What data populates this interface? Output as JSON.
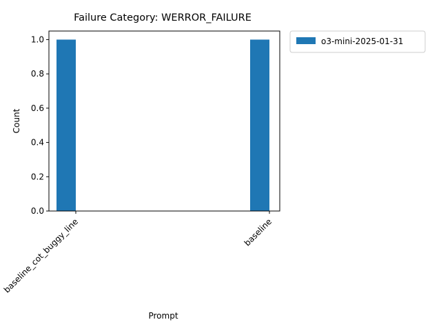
{
  "chart_data": {
    "type": "bar",
    "title": "Failure Category: WERROR_FAILURE",
    "xlabel": "Prompt",
    "ylabel": "Count",
    "categories": [
      "baseline_cot_buggy_line",
      "baseline"
    ],
    "series": [
      {
        "name": "o3-mini-2025-01-31",
        "values": [
          1,
          1
        ],
        "color": "#1f77b4"
      }
    ],
    "ylim": [
      0,
      1.05
    ],
    "yticks": [
      "0.0",
      "0.2",
      "0.4",
      "0.6",
      "0.8",
      "1.0"
    ],
    "ytick_values": [
      0,
      0.2,
      0.4,
      0.6,
      0.8,
      1.0
    ],
    "x_tick_rotation_deg": 45,
    "grid": false,
    "legend_placement": "outside-top-right"
  }
}
